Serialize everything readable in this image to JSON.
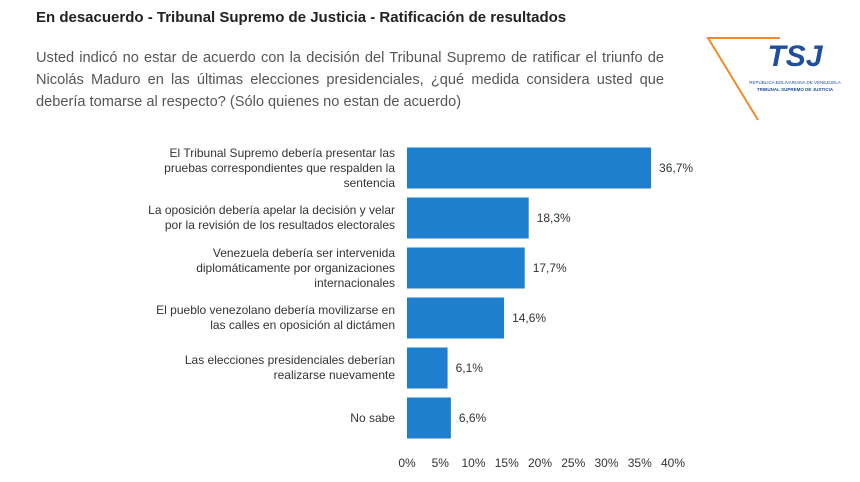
{
  "chart_data": {
    "type": "barh",
    "title": "En desacuerdo - Tribunal Supremo de Justicia - Ratificación de resultados",
    "subtitle": "Usted indicó no estar de acuerdo con la decisión del Tribunal Supremo de ratificar el triunfo de Nicolás Maduro en las últimas elecciones presidenciales, ¿qué medida considera usted que debería tomarse al respecto? (Sólo quienes no estan de acuerdo)",
    "logo": {
      "mark": "TSJ",
      "line1": "REPÚBLICA BOLIVARIANA DE VENEZUELA",
      "line2": "TRIBUNAL SUPREMO DE JUSTICIA"
    },
    "categories": [
      "El Tribunal Supremo debería presentar las pruebas correspondientes que respalden la sentencia",
      "La oposición debería apelar la decisión y velar por la revisión de los resultados electorales",
      "Venezuela debería ser intervenida diplomáticamente por organizaciones internacionales",
      "El pueblo venezolano debería movilizarse en las calles en oposición al dictámen",
      "Las elecciones presidenciales deberían realizarse nuevamente",
      "No sabe"
    ],
    "values": [
      36.7,
      18.3,
      17.7,
      14.6,
      6.1,
      6.6
    ],
    "value_labels": [
      "36,7%",
      "18,3%",
      "17,7%",
      "14,6%",
      "6,1%",
      "6,6%"
    ],
    "color": "#1f7fcf",
    "xlim": [
      0,
      40
    ],
    "xticks": [
      {
        "value": 0,
        "label": "0%"
      },
      {
        "value": 5,
        "label": "5%"
      },
      {
        "value": 10,
        "label": "10%"
      },
      {
        "value": 15,
        "label": "15%"
      },
      {
        "value": 20,
        "label": "20%"
      },
      {
        "value": 25,
        "label": "25%"
      },
      {
        "value": 30,
        "label": "30%"
      },
      {
        "value": 35,
        "label": "35%"
      },
      {
        "value": 40,
        "label": "40%"
      }
    ],
    "grid": false
  }
}
